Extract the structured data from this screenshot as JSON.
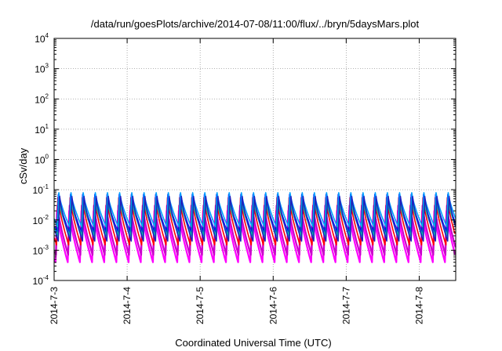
{
  "chart_data": {
    "type": "line",
    "title": "/data/run/goesPlots/archive/2014-07-08/11:00/flux/../bryn/5daysMars.plot",
    "xlabel": "Coordinated Universal Time (UTC)",
    "ylabel": "cSv/day",
    "y_scale": "log",
    "ylim": [
      0.0001,
      10000
    ],
    "xlim_days": [
      0,
      5.5
    ],
    "x_ticks": [
      {
        "day": 0,
        "label": "2014-7-3"
      },
      {
        "day": 1,
        "label": "2014-7-4"
      },
      {
        "day": 2,
        "label": "2014-7-5"
      },
      {
        "day": 3,
        "label": "2014-7-6"
      },
      {
        "day": 4,
        "label": "2014-7-7"
      },
      {
        "day": 5,
        "label": "2014-7-8"
      }
    ],
    "y_ticks": [
      {
        "value": 0.0001,
        "base": "10",
        "exp": "-4"
      },
      {
        "value": 0.001,
        "base": "10",
        "exp": "-3"
      },
      {
        "value": 0.01,
        "base": "10",
        "exp": "-2"
      },
      {
        "value": 0.1,
        "base": "10",
        "exp": "-1"
      },
      {
        "value": 1,
        "base": "10",
        "exp": "0"
      },
      {
        "value": 10,
        "base": "10",
        "exp": "1"
      },
      {
        "value": 100,
        "base": "10",
        "exp": "2"
      },
      {
        "value": 1000,
        "base": "10",
        "exp": "3"
      },
      {
        "value": 10000,
        "base": "10",
        "exp": "4"
      }
    ],
    "grid": true,
    "cycles_per_day": 6,
    "series": [
      {
        "color": "#ff00ff",
        "peak": 0.02,
        "trough": 0.0004
      },
      {
        "color": "#cc00cc",
        "peak": 0.03,
        "trough": 0.0007
      },
      {
        "color": "#ff0000",
        "peak": 0.055,
        "trough": 0.0015
      },
      {
        "color": "#0000ff",
        "peak": 0.07,
        "trough": 0.004
      },
      {
        "color": "#00a0ff",
        "peak": 0.08,
        "trough": 0.006
      },
      {
        "color": "#00c0a0",
        "peak": 0.04,
        "trough": 0.003
      },
      {
        "color": "#2020c0",
        "peak": 0.06,
        "trough": 0.002
      }
    ]
  }
}
